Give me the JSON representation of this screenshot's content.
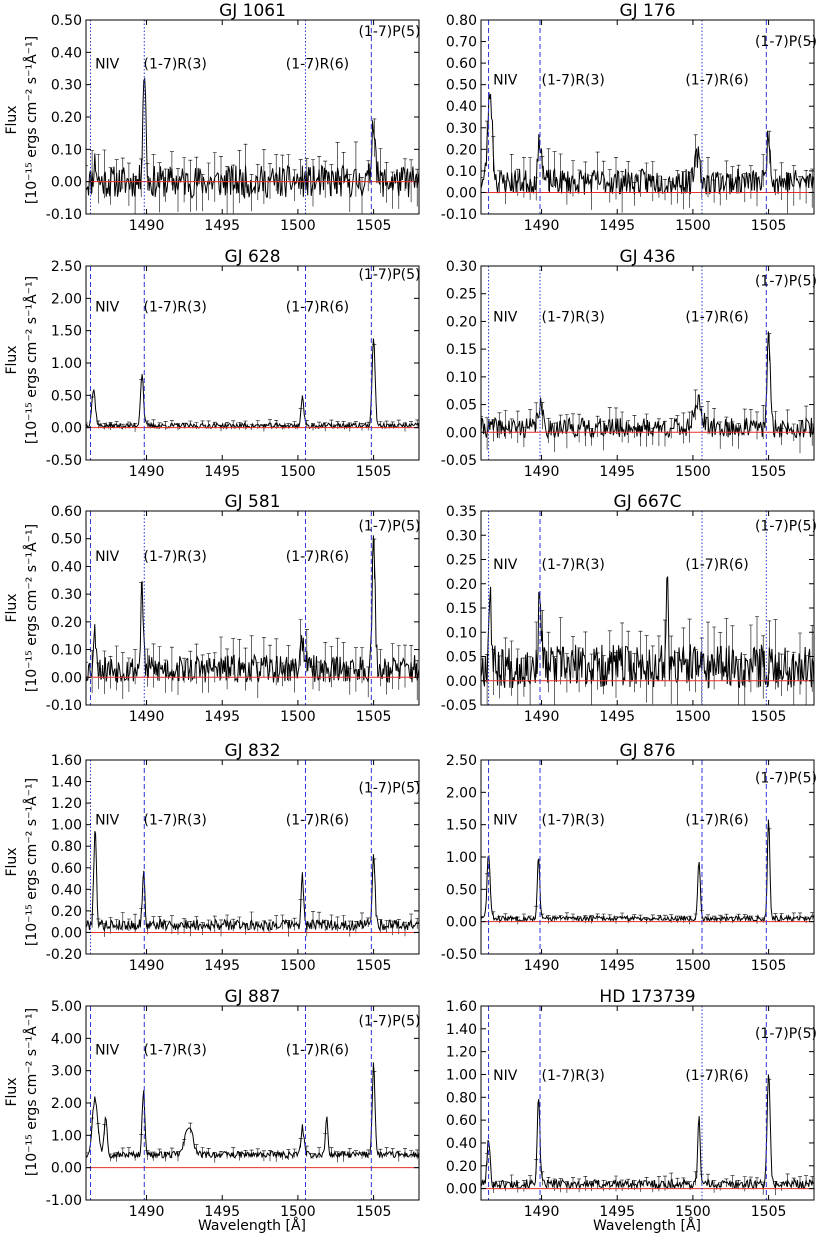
{
  "figure": {
    "ylabel_line1": "Flux",
    "ylabel_line2": "[10⁻¹⁵ ergs cm⁻² s⁻¹Å⁻¹]",
    "xlabel": "Wavelength [Å]"
  },
  "colors": {
    "spectrum": "#000000",
    "zero_line": "#e8302a",
    "line_marker": "#2b35d8",
    "frame": "#000000"
  },
  "chart_data": [
    {
      "title": "GJ 1061",
      "type": "line",
      "xlim": [
        1486,
        1508
      ],
      "ylim": [
        -0.1,
        0.5
      ],
      "yticks": [
        -0.1,
        0.0,
        0.1,
        0.2,
        0.3,
        0.4,
        0.5
      ],
      "ytick_labels": [
        "-0.10",
        "0.00",
        "0.10",
        "0.20",
        "0.30",
        "0.40",
        "0.50"
      ],
      "xticks": [
        1490,
        1495,
        1500,
        1505
      ],
      "xtick_labels": [
        "1490",
        "1495",
        "1500",
        "1505"
      ],
      "noise": 0.05,
      "seed": 11,
      "baseline": 0.0,
      "peaks": [
        [
          1489.85,
          0.35,
          0.1
        ],
        [
          1505.0,
          0.2,
          0.12
        ],
        [
          1486.6,
          0.06,
          0.1
        ]
      ],
      "markers": [
        {
          "x": 1486.3,
          "style": "dotted"
        },
        {
          "x": 1489.85,
          "style": "dotted"
        },
        {
          "x": 1500.5,
          "style": "dotted"
        },
        {
          "x": 1504.85,
          "style": "dashed"
        }
      ],
      "labels": [
        {
          "text": "NIV",
          "x": 1486.6,
          "y": 0.35
        },
        {
          "text": "(1-7)R(3)",
          "x": 1489.8,
          "y": 0.35
        },
        {
          "text": "(1-7)R(6)",
          "x": 1499.2,
          "y": 0.35
        },
        {
          "text": "(1-7)P(5)",
          "x": 1504.0,
          "y": 0.45
        }
      ]
    },
    {
      "title": "GJ 176",
      "type": "line",
      "xlim": [
        1486,
        1508
      ],
      "ylim": [
        -0.1,
        0.8
      ],
      "yticks": [
        -0.1,
        0.0,
        0.1,
        0.2,
        0.3,
        0.4,
        0.5,
        0.6,
        0.7,
        0.8
      ],
      "ytick_labels": [
        "-0.10",
        "0.00",
        "0.10",
        "0.20",
        "0.30",
        "0.40",
        "0.50",
        "0.60",
        "0.70",
        "0.80"
      ],
      "xticks": [
        1490,
        1495,
        1500,
        1505
      ],
      "xtick_labels": [
        "1490",
        "1495",
        "1500",
        "1505"
      ],
      "noise": 0.06,
      "seed": 23,
      "baseline": 0.05,
      "peaks": [
        [
          1486.6,
          0.42,
          0.15
        ],
        [
          1489.9,
          0.2,
          0.12
        ],
        [
          1500.3,
          0.12,
          0.15
        ],
        [
          1505.0,
          0.22,
          0.12
        ]
      ],
      "markers": [
        {
          "x": 1486.5,
          "style": "dashed"
        },
        {
          "x": 1489.9,
          "style": "dashed"
        },
        {
          "x": 1500.6,
          "style": "dotted"
        },
        {
          "x": 1504.85,
          "style": "dashed"
        }
      ],
      "labels": [
        {
          "text": "NIV",
          "x": 1486.8,
          "y": 0.5
        },
        {
          "text": "(1-7)R(3)",
          "x": 1490.0,
          "y": 0.5
        },
        {
          "text": "(1-7)R(6)",
          "x": 1499.5,
          "y": 0.5
        },
        {
          "text": "(1-7)P(5)",
          "x": 1504.1,
          "y": 0.68
        }
      ]
    },
    {
      "title": "GJ 628",
      "type": "line",
      "xlim": [
        1486,
        1508
      ],
      "ylim": [
        -0.5,
        2.5
      ],
      "yticks": [
        -0.5,
        0.0,
        0.5,
        1.0,
        1.5,
        2.0,
        2.5
      ],
      "ytick_labels": [
        "-0.50",
        "0.00",
        "0.50",
        "1.00",
        "1.50",
        "2.00",
        "2.50"
      ],
      "xticks": [
        1490,
        1495,
        1500,
        1505
      ],
      "xtick_labels": [
        "1490",
        "1495",
        "1500",
        "1505"
      ],
      "noise": 0.04,
      "seed": 37,
      "baseline": 0.03,
      "peaks": [
        [
          1486.5,
          0.55,
          0.12
        ],
        [
          1489.7,
          0.8,
          0.1
        ],
        [
          1500.3,
          0.45,
          0.09
        ],
        [
          1505.0,
          1.35,
          0.1
        ]
      ],
      "markers": [
        {
          "x": 1486.3,
          "style": "dashed"
        },
        {
          "x": 1489.85,
          "style": "dashed"
        },
        {
          "x": 1500.5,
          "style": "dashed"
        },
        {
          "x": 1504.85,
          "style": "dashed"
        }
      ],
      "labels": [
        {
          "text": "NIV",
          "x": 1486.6,
          "y": 1.8
        },
        {
          "text": "(1-7)R(3)",
          "x": 1489.8,
          "y": 1.8
        },
        {
          "text": "(1-7)R(6)",
          "x": 1499.2,
          "y": 1.8
        },
        {
          "text": "(1-7)P(5)",
          "x": 1504.0,
          "y": 2.3
        }
      ]
    },
    {
      "title": "GJ 436",
      "type": "line",
      "xlim": [
        1486,
        1508
      ],
      "ylim": [
        -0.05,
        0.3
      ],
      "yticks": [
        -0.05,
        0.0,
        0.05,
        0.1,
        0.15,
        0.2,
        0.25,
        0.3
      ],
      "ytick_labels": [
        "-0.05",
        "0.00",
        "0.05",
        "0.10",
        "0.15",
        "0.20",
        "0.25",
        "0.30"
      ],
      "xticks": [
        1490,
        1495,
        1500,
        1505
      ],
      "xtick_labels": [
        "1490",
        "1495",
        "1500",
        "1505"
      ],
      "noise": 0.018,
      "seed": 41,
      "baseline": 0.008,
      "peaks": [
        [
          1489.9,
          0.04,
          0.15
        ],
        [
          1500.3,
          0.05,
          0.25
        ],
        [
          1505.0,
          0.17,
          0.1
        ]
      ],
      "markers": [
        {
          "x": 1486.5,
          "style": "dotted"
        },
        {
          "x": 1489.9,
          "style": "dotted"
        },
        {
          "x": 1500.6,
          "style": "dotted"
        },
        {
          "x": 1504.85,
          "style": "dashed"
        }
      ],
      "labels": [
        {
          "text": "NIV",
          "x": 1486.8,
          "y": 0.2
        },
        {
          "text": "(1-7)R(3)",
          "x": 1490.0,
          "y": 0.2
        },
        {
          "text": "(1-7)R(6)",
          "x": 1499.5,
          "y": 0.2
        },
        {
          "text": "(1-7)P(5)",
          "x": 1504.1,
          "y": 0.265
        }
      ]
    },
    {
      "title": "GJ 581",
      "type": "line",
      "xlim": [
        1486,
        1508
      ],
      "ylim": [
        -0.1,
        0.6
      ],
      "yticks": [
        -0.1,
        0.0,
        0.1,
        0.2,
        0.3,
        0.4,
        0.5,
        0.6
      ],
      "ytick_labels": [
        "-0.10",
        "0.00",
        "0.10",
        "0.20",
        "0.30",
        "0.40",
        "0.50",
        "0.60"
      ],
      "xticks": [
        1490,
        1495,
        1500,
        1505
      ],
      "xtick_labels": [
        "1490",
        "1495",
        "1500",
        "1505"
      ],
      "noise": 0.05,
      "seed": 53,
      "baseline": 0.03,
      "peaks": [
        [
          1486.6,
          0.13,
          0.1
        ],
        [
          1489.7,
          0.3,
          0.08
        ],
        [
          1500.3,
          0.1,
          0.15
        ],
        [
          1505.0,
          0.45,
          0.1
        ]
      ],
      "markers": [
        {
          "x": 1486.3,
          "style": "dashed"
        },
        {
          "x": 1489.85,
          "style": "dotted"
        },
        {
          "x": 1500.5,
          "style": "dashed"
        },
        {
          "x": 1504.85,
          "style": "dashed"
        }
      ],
      "labels": [
        {
          "text": "NIV",
          "x": 1486.6,
          "y": 0.42
        },
        {
          "text": "(1-7)R(3)",
          "x": 1489.8,
          "y": 0.42
        },
        {
          "text": "(1-7)R(6)",
          "x": 1499.2,
          "y": 0.42
        },
        {
          "text": "(1-7)P(5)",
          "x": 1504.0,
          "y": 0.53
        }
      ]
    },
    {
      "title": "GJ 667C",
      "type": "line",
      "xlim": [
        1486,
        1508
      ],
      "ylim": [
        -0.05,
        0.35
      ],
      "yticks": [
        -0.05,
        0.0,
        0.05,
        0.1,
        0.15,
        0.2,
        0.25,
        0.3,
        0.35
      ],
      "ytick_labels": [
        "-0.05",
        "0.00",
        "0.05",
        "0.10",
        "0.15",
        "0.20",
        "0.25",
        "0.30",
        "0.35"
      ],
      "xticks": [
        1490,
        1495,
        1500,
        1505
      ],
      "xtick_labels": [
        "1490",
        "1495",
        "1500",
        "1505"
      ],
      "noise": 0.045,
      "seed": 67,
      "baseline": 0.03,
      "peaks": [
        [
          1486.6,
          0.17,
          0.08
        ],
        [
          1489.9,
          0.18,
          0.08
        ],
        [
          1498.3,
          0.2,
          0.06
        ]
      ],
      "markers": [
        {
          "x": 1486.5,
          "style": "dotted"
        },
        {
          "x": 1489.9,
          "style": "dashed"
        },
        {
          "x": 1500.6,
          "style": "dotted"
        },
        {
          "x": 1504.85,
          "style": "dotted"
        }
      ],
      "labels": [
        {
          "text": "NIV",
          "x": 1486.8,
          "y": 0.23
        },
        {
          "text": "(1-7)R(3)",
          "x": 1490.0,
          "y": 0.23
        },
        {
          "text": "(1-7)R(6)",
          "x": 1499.5,
          "y": 0.23
        },
        {
          "text": "(1-7)P(5)",
          "x": 1504.1,
          "y": 0.31
        }
      ]
    },
    {
      "title": "GJ 832",
      "type": "line",
      "xlim": [
        1486,
        1508
      ],
      "ylim": [
        -0.2,
        1.6
      ],
      "yticks": [
        -0.2,
        0.0,
        0.2,
        0.4,
        0.6,
        0.8,
        1.0,
        1.2,
        1.4,
        1.6
      ],
      "ytick_labels": [
        "-0.20",
        "0.00",
        "0.20",
        "0.40",
        "0.60",
        "0.80",
        "1.00",
        "1.20",
        "1.40",
        "1.60"
      ],
      "xticks": [
        1490,
        1495,
        1500,
        1505
      ],
      "xtick_labels": [
        "1490",
        "1495",
        "1500",
        "1505"
      ],
      "noise": 0.05,
      "seed": 79,
      "baseline": 0.07,
      "peaks": [
        [
          1486.6,
          0.88,
          0.09
        ],
        [
          1489.8,
          0.5,
          0.08
        ],
        [
          1500.3,
          0.45,
          0.08
        ],
        [
          1505.0,
          0.68,
          0.09
        ]
      ],
      "markers": [
        {
          "x": 1486.3,
          "style": "dotted"
        },
        {
          "x": 1489.85,
          "style": "dashed"
        },
        {
          "x": 1500.5,
          "style": "dashed"
        },
        {
          "x": 1504.85,
          "style": "dashed"
        }
      ],
      "labels": [
        {
          "text": "NIV",
          "x": 1486.6,
          "y": 1.0
        },
        {
          "text": "(1-7)R(3)",
          "x": 1489.8,
          "y": 1.0
        },
        {
          "text": "(1-7)R(6)",
          "x": 1499.2,
          "y": 1.0
        },
        {
          "text": "(1-7)P(5)",
          "x": 1504.0,
          "y": 1.3
        }
      ]
    },
    {
      "title": "GJ 876",
      "type": "line",
      "xlim": [
        1486,
        1508
      ],
      "ylim": [
        -0.5,
        2.5
      ],
      "yticks": [
        -0.5,
        0.0,
        0.5,
        1.0,
        1.5,
        2.0,
        2.5
      ],
      "ytick_labels": [
        "-0.50",
        "0.00",
        "0.50",
        "1.00",
        "1.50",
        "2.00",
        "2.50"
      ],
      "xticks": [
        1490,
        1495,
        1500,
        1505
      ],
      "xtick_labels": [
        "1490",
        "1495",
        "1500",
        "1505"
      ],
      "noise": 0.04,
      "seed": 83,
      "baseline": 0.05,
      "peaks": [
        [
          1486.5,
          1.0,
          0.1
        ],
        [
          1489.8,
          0.95,
          0.08
        ],
        [
          1500.4,
          0.9,
          0.08
        ],
        [
          1505.0,
          1.55,
          0.08
        ]
      ],
      "markers": [
        {
          "x": 1486.5,
          "style": "dashed"
        },
        {
          "x": 1489.9,
          "style": "dashed"
        },
        {
          "x": 1500.6,
          "style": "dashed"
        },
        {
          "x": 1504.85,
          "style": "dashed"
        }
      ],
      "labels": [
        {
          "text": "NIV",
          "x": 1486.8,
          "y": 1.5
        },
        {
          "text": "(1-7)R(3)",
          "x": 1490.0,
          "y": 1.5
        },
        {
          "text": "(1-7)R(6)",
          "x": 1499.5,
          "y": 1.5
        },
        {
          "text": "(1-7)P(5)",
          "x": 1504.1,
          "y": 2.15
        }
      ]
    },
    {
      "title": "GJ 887",
      "type": "line",
      "xlim": [
        1486,
        1508
      ],
      "ylim": [
        -1.0,
        5.0
      ],
      "yticks": [
        -1.0,
        0.0,
        1.0,
        2.0,
        3.0,
        4.0,
        5.0
      ],
      "ytick_labels": [
        "-1.00",
        "0.00",
        "1.00",
        "2.00",
        "3.00",
        "4.00",
        "5.00"
      ],
      "xticks": [
        1490,
        1495,
        1500,
        1505
      ],
      "xtick_labels": [
        "1490",
        "1495",
        "1500",
        "1505"
      ],
      "noise": 0.1,
      "seed": 97,
      "baseline": 0.4,
      "peaks": [
        [
          1486.6,
          1.75,
          0.18
        ],
        [
          1487.3,
          1.2,
          0.1
        ],
        [
          1489.8,
          2.0,
          0.09
        ],
        [
          1492.8,
          0.9,
          0.25
        ],
        [
          1500.3,
          0.85,
          0.1
        ],
        [
          1501.9,
          1.15,
          0.08
        ],
        [
          1505.0,
          2.85,
          0.09
        ]
      ],
      "markers": [
        {
          "x": 1486.3,
          "style": "dashed"
        },
        {
          "x": 1489.85,
          "style": "dashed"
        },
        {
          "x": 1500.5,
          "style": "dashed"
        },
        {
          "x": 1504.85,
          "style": "dashed"
        }
      ],
      "labels": [
        {
          "text": "NIV",
          "x": 1486.6,
          "y": 3.5
        },
        {
          "text": "(1-7)R(3)",
          "x": 1489.8,
          "y": 3.5
        },
        {
          "text": "(1-7)R(6)",
          "x": 1499.2,
          "y": 3.5
        },
        {
          "text": "(1-7)P(5)",
          "x": 1504.0,
          "y": 4.4
        }
      ]
    },
    {
      "title": "HD 173739",
      "type": "line",
      "xlim": [
        1486,
        1508
      ],
      "ylim": [
        -0.1,
        1.6
      ],
      "yticks": [
        0.0,
        0.2,
        0.4,
        0.6,
        0.8,
        1.0,
        1.2,
        1.4,
        1.6
      ],
      "ytick_labels": [
        "0.00",
        "0.20",
        "0.40",
        "0.60",
        "0.80",
        "1.00",
        "1.20",
        "1.40",
        "1.60"
      ],
      "xticks": [
        1490,
        1495,
        1500,
        1505
      ],
      "xtick_labels": [
        "1490",
        "1495",
        "1500",
        "1505"
      ],
      "noise": 0.04,
      "seed": 101,
      "baseline": 0.04,
      "peaks": [
        [
          1486.5,
          0.38,
          0.1
        ],
        [
          1489.8,
          0.75,
          0.09
        ],
        [
          1500.4,
          0.6,
          0.08
        ],
        [
          1505.0,
          0.95,
          0.1
        ]
      ],
      "markers": [
        {
          "x": 1486.5,
          "style": "dashed"
        },
        {
          "x": 1489.9,
          "style": "dashed"
        },
        {
          "x": 1500.6,
          "style": "dotted"
        },
        {
          "x": 1504.85,
          "style": "dashed"
        }
      ],
      "labels": [
        {
          "text": "NIV",
          "x": 1486.8,
          "y": 0.95
        },
        {
          "text": "(1-7)R(3)",
          "x": 1490.0,
          "y": 0.95
        },
        {
          "text": "(1-7)R(6)",
          "x": 1499.5,
          "y": 0.95
        },
        {
          "text": "(1-7)P(5)",
          "x": 1504.1,
          "y": 1.32
        }
      ]
    }
  ]
}
